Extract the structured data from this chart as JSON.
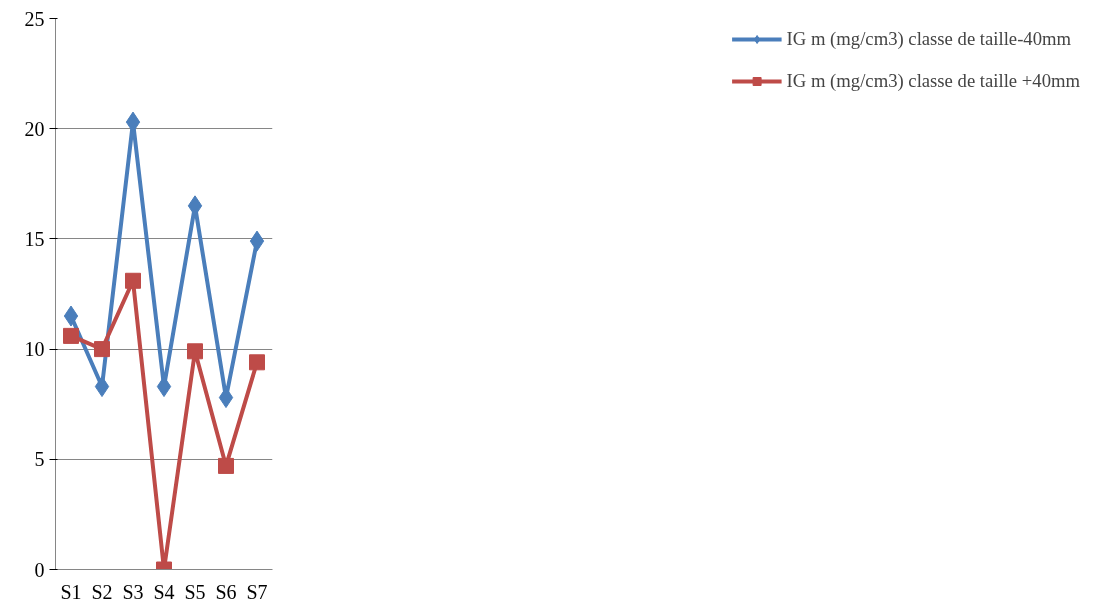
{
  "chart_data": {
    "type": "line",
    "categories": [
      "S1",
      "S2",
      "S3",
      "S4",
      "S5",
      "S6",
      "S7"
    ],
    "series": [
      {
        "name": "IG m (mg/cm3) classe de taille-40mm",
        "color": "#4a7ebb",
        "marker": "diamond",
        "values": [
          11.5,
          8.3,
          20.3,
          8.3,
          16.5,
          7.8,
          14.9
        ]
      },
      {
        "name": "IG m (mg/cm3) classe de taille +40mm",
        "color": "#be4b48",
        "marker": "square",
        "values": [
          10.6,
          10.0,
          13.1,
          0,
          9.9,
          4.7,
          9.4
        ]
      }
    ],
    "ylim": [
      0,
      25
    ],
    "yticks": [
      0,
      5,
      10,
      15,
      20,
      25
    ],
    "grid": "y",
    "legend": "right",
    "line_style": "solid"
  }
}
